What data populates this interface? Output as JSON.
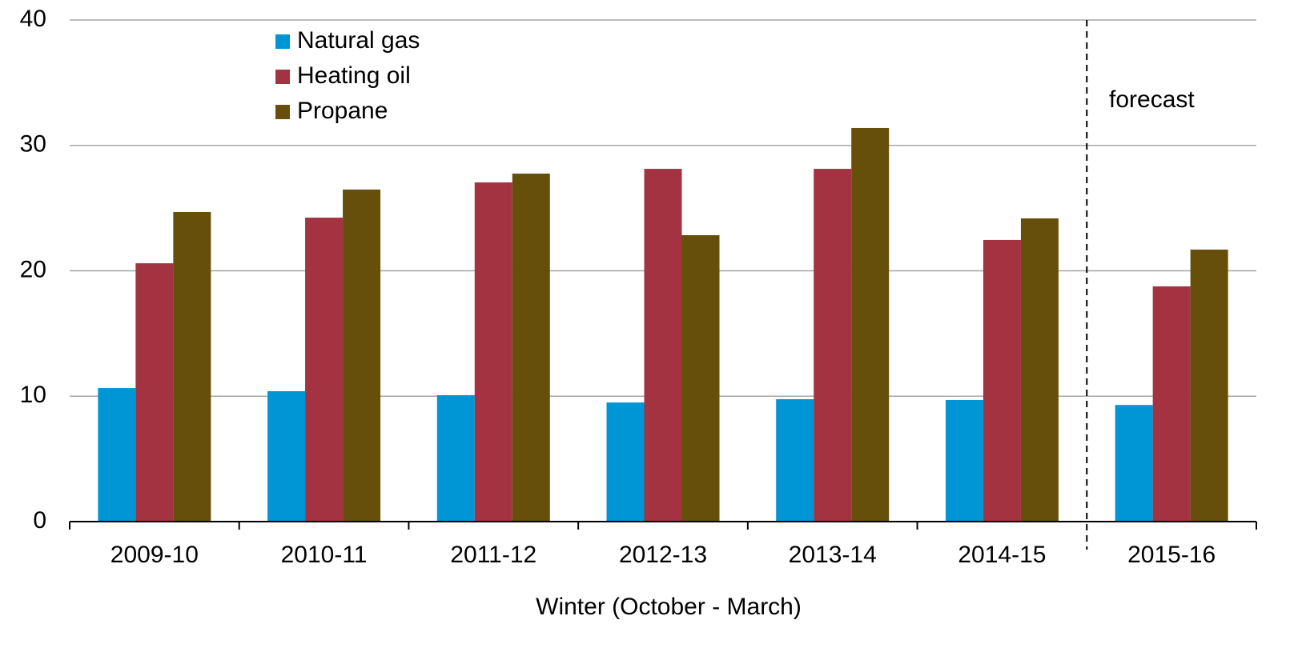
{
  "chart_data": {
    "type": "bar",
    "x_label": "Winter (October - March)",
    "categories": [
      "2009-10",
      "2010-11",
      "2011-12",
      "2012-13",
      "2013-14",
      "2014-15",
      "2015-16"
    ],
    "series": [
      {
        "name": "Natural gas",
        "color": "#0096d6",
        "values": [
          10.65,
          10.4,
          10.08,
          9.5,
          9.76,
          9.7,
          9.3
        ]
      },
      {
        "name": "Heating oil",
        "color": "#a33340",
        "values": [
          20.6,
          24.24,
          27.05,
          28.13,
          28.13,
          22.46,
          18.76
        ]
      },
      {
        "name": "Propane",
        "color": "#654f0a",
        "values": [
          24.69,
          26.48,
          27.75,
          22.84,
          31.39,
          24.18,
          21.69
        ]
      }
    ],
    "ylim": [
      0,
      40
    ],
    "yticks": [
      0,
      10,
      20,
      30,
      40
    ],
    "grid": true,
    "annotation": "forecast"
  }
}
